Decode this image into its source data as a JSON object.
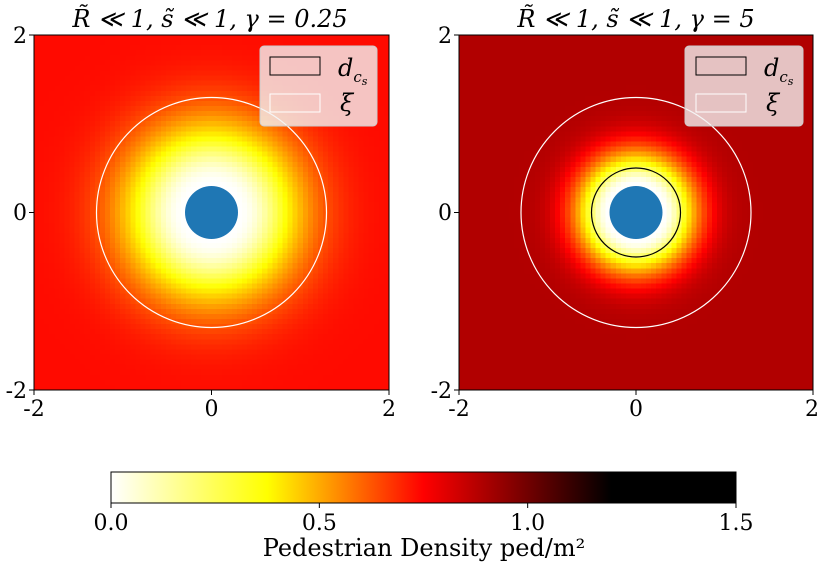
{
  "chart_data": [
    {
      "type": "heatmap",
      "title": "R̃ ≪ 1,  s̃ ≪ 1,  γ = 0.25",
      "gamma": 0.25,
      "xlim": [
        -2,
        2
      ],
      "ylim": [
        -2,
        2
      ],
      "xticks": [
        "-2",
        "0",
        "2"
      ],
      "yticks": [
        "-2",
        "0",
        "2"
      ],
      "center_disk_radius": 0.3,
      "circles": [
        {
          "name": "ξ",
          "radius": 1.3,
          "color": "#ffffff"
        }
      ],
      "legend": [
        {
          "label": "d",
          "sub": "c",
          "subsub": "s",
          "edge": "#000000"
        },
        {
          "label": "ξ",
          "edge": "#ffffff"
        }
      ],
      "density_profile": {
        "min_density": 0.0,
        "far_density": 0.93,
        "decay_length": 0.75
      },
      "legend_position": "top-right"
    },
    {
      "type": "heatmap",
      "title": "R̃ ≪ 1,  s̃ ≪ 1,  γ = 5",
      "gamma": 5,
      "xlim": [
        -2,
        2
      ],
      "ylim": [
        -2,
        2
      ],
      "xticks": [
        "-2",
        "0",
        "2"
      ],
      "yticks": [
        "-2",
        "0",
        "2"
      ],
      "center_disk_radius": 0.3,
      "circles": [
        {
          "name": "d_cs",
          "radius": 0.5,
          "color": "#000000"
        },
        {
          "name": "ξ",
          "radius": 1.3,
          "color": "#ffffff"
        }
      ],
      "legend": [
        {
          "label": "d",
          "sub": "c",
          "subsub": "s",
          "edge": "#000000"
        },
        {
          "label": "ξ",
          "edge": "#ffffff"
        }
      ],
      "density_profile": {
        "min_density": 0.0,
        "far_density": 1.12,
        "decay_length": 0.42
      },
      "legend_position": "top-right"
    }
  ],
  "colorbar": {
    "colormap": "hot_r",
    "range": [
      0.0,
      1.5
    ],
    "ticks": [
      "0.0",
      "0.5",
      "1.0",
      "1.5"
    ],
    "tick_values": [
      0.0,
      0.5,
      1.0,
      1.5
    ],
    "label": "Pedestrian Density ped/m²"
  },
  "colors": {
    "disk": "#1f77b4",
    "legend_bg": "#f2f2f2"
  }
}
